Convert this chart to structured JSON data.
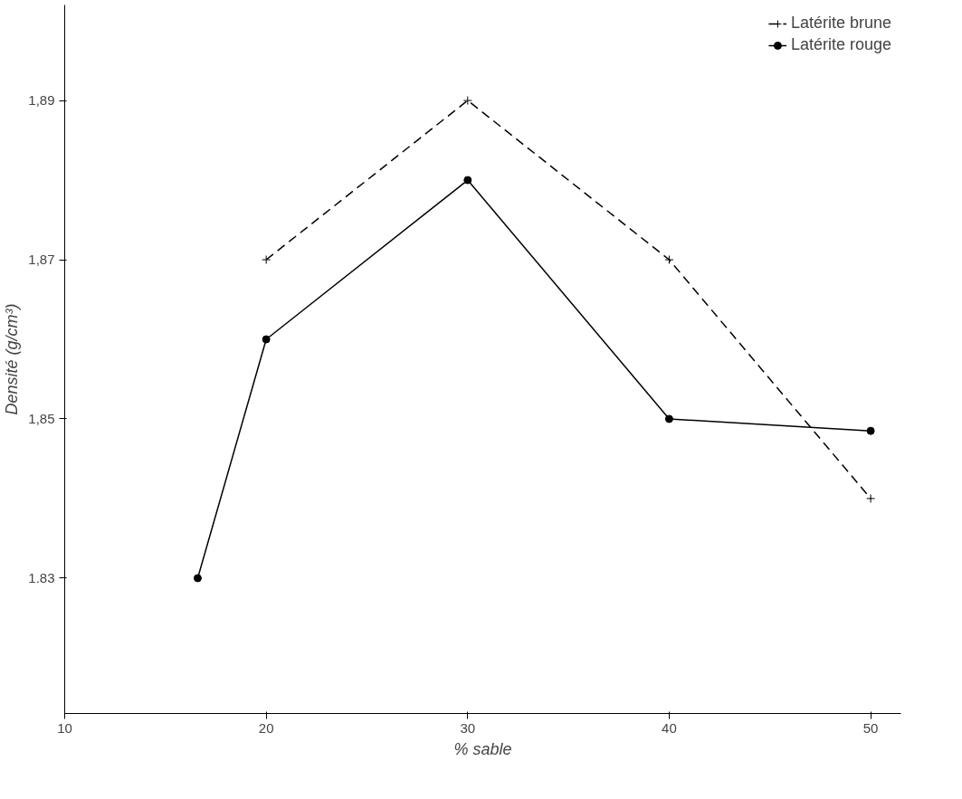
{
  "chart_data": {
    "type": "line",
    "xlabel": "% sable",
    "ylabel": "Densité (g/cm³)",
    "xlim": [
      10,
      51.5
    ],
    "xticks": [
      10,
      20,
      30,
      40,
      50
    ],
    "ylim": [
      1.813,
      1.902
    ],
    "yticks": [
      {
        "value": 1.83,
        "label": "1.83"
      },
      {
        "value": 1.85,
        "label": "1,85"
      },
      {
        "value": 1.87,
        "label": "1,87"
      },
      {
        "value": 1.89,
        "label": "1,89"
      }
    ],
    "grid": false,
    "legend": "top right",
    "series": [
      {
        "name": "Latérite brune",
        "color": "#000000",
        "x": [
          20,
          30,
          40,
          50
        ],
        "values": [
          1.87,
          1.89,
          1.87,
          1.84
        ],
        "line_style": "dashed",
        "marker": "cross"
      },
      {
        "name": "Latérite rouge",
        "color": "#000000",
        "x": [
          16.6,
          20,
          30,
          40,
          50
        ],
        "values": [
          1.83,
          1.86,
          1.88,
          1.85,
          1.8485
        ],
        "line_style": "solid",
        "marker": "circle"
      }
    ]
  }
}
